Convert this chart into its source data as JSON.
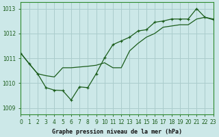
{
  "title": "Graphe pression niveau de la mer (hPa)",
  "background_color": "#cce8e8",
  "grid_color": "#aacccc",
  "line_color": "#1a5c1a",
  "x_min": 0,
  "x_max": 23,
  "y_min": 1008.75,
  "y_max": 1013.25,
  "x_ticks": [
    0,
    1,
    2,
    3,
    4,
    5,
    6,
    7,
    8,
    9,
    10,
    11,
    12,
    13,
    14,
    15,
    16,
    17,
    18,
    19,
    20,
    21,
    22,
    23
  ],
  "y_ticks": [
    1009,
    1010,
    1011,
    1012,
    1013
  ],
  "series1_x": [
    0,
    1,
    2,
    3,
    4,
    5,
    6,
    7,
    8,
    9,
    10,
    11,
    12,
    13,
    14,
    15,
    16,
    17,
    18,
    19,
    20,
    21,
    22,
    23
  ],
  "series1_y": [
    1011.2,
    1010.78,
    1010.38,
    1009.82,
    1009.72,
    1009.7,
    1009.32,
    1009.85,
    1009.82,
    1010.38,
    1011.02,
    1011.55,
    1011.7,
    1011.85,
    1012.1,
    1012.15,
    1012.45,
    1012.5,
    1012.58,
    1012.58,
    1012.58,
    1013.0,
    1012.65,
    1012.58
  ],
  "series2_x": [
    0,
    1,
    2,
    3,
    4,
    5,
    6,
    7,
    8,
    9,
    10,
    11,
    12,
    13,
    14,
    15,
    16,
    17,
    18,
    19,
    20,
    21,
    22,
    23
  ],
  "series2_y": [
    1011.2,
    1010.78,
    1010.38,
    1010.3,
    1010.25,
    1010.62,
    1010.62,
    1010.65,
    1010.68,
    1010.72,
    1010.82,
    1010.62,
    1010.62,
    1011.3,
    1011.6,
    1011.85,
    1012.0,
    1012.25,
    1012.3,
    1012.35,
    1012.35,
    1012.58,
    1012.65,
    1012.55
  ]
}
